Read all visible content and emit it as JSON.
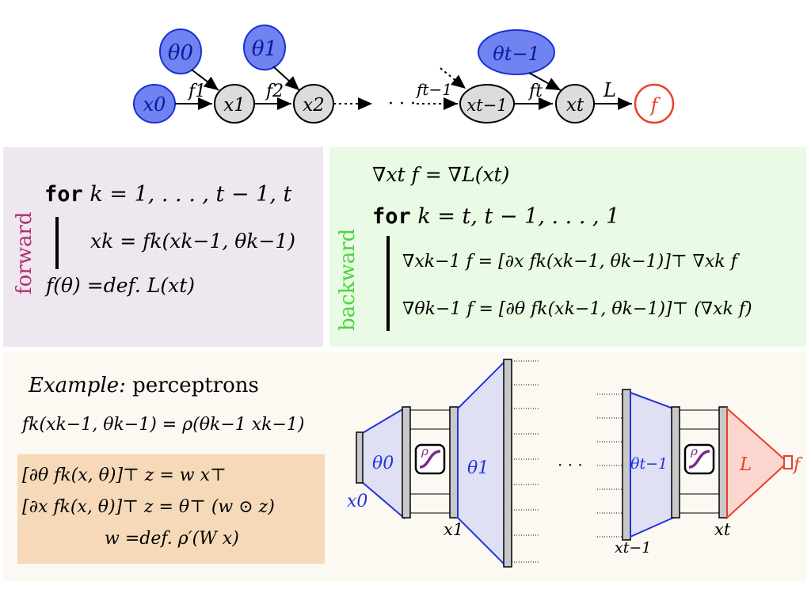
{
  "graph": {
    "theta_nodes": [
      "θ0",
      "θ1",
      "θt−1"
    ],
    "x_nodes": [
      "x0",
      "x1",
      "x2",
      "xt−1",
      "xt"
    ],
    "output_node": "f",
    "edge_labels": [
      "f1",
      "f2",
      "ft−1",
      "ft",
      "L"
    ],
    "ellipsis": "· · ·",
    "colors": {
      "param": "#6b7ff0",
      "param_stroke": "#2233dd",
      "state": "#dcdcdc",
      "output": "#e8402a"
    }
  },
  "forward": {
    "side_label": "forward",
    "side_color": "#b0306a",
    "for_keyword": "for",
    "loop": "k = 1, . . . , t − 1, t",
    "body": "xk = fk(xk−1, θk−1)",
    "result": "f(θ) =def. L(xt)"
  },
  "backward": {
    "side_label": "backward",
    "side_color": "#4cd43c",
    "init": "∇xt f = ∇L(xt)",
    "for_keyword": "for",
    "loop": "k = t, t − 1, . . . , 1",
    "body1": "∇xk−1 f = [∂x fk(xk−1, θk−1)]⊤ ∇xk f",
    "body2": "∇θk−1 f = [∂θ fk(xk−1, θk−1)]⊤ (∇xk f)"
  },
  "example": {
    "title_italic": "Example:",
    "title_rest": "perceptrons",
    "definition": "fk(xk−1, θk−1) = ρ(θk−1 xk−1)",
    "grad_theta": "[∂θ fk(x, θ)]⊤ z = w x⊤",
    "grad_x": "[∂x fk(x, θ)]⊤ z = θ⊤ (w ⊙ z)",
    "w_def": "w =def. ρ′(W x)",
    "network_labels": {
      "theta0": "θ0",
      "theta1": "θ1",
      "thetat1": "θt−1",
      "x0": "x0",
      "x1": "x1",
      "xt1": "xt−1",
      "xt": "xt",
      "rho": "ρ",
      "L": "L",
      "f": "f",
      "dots": "· · ·"
    }
  }
}
